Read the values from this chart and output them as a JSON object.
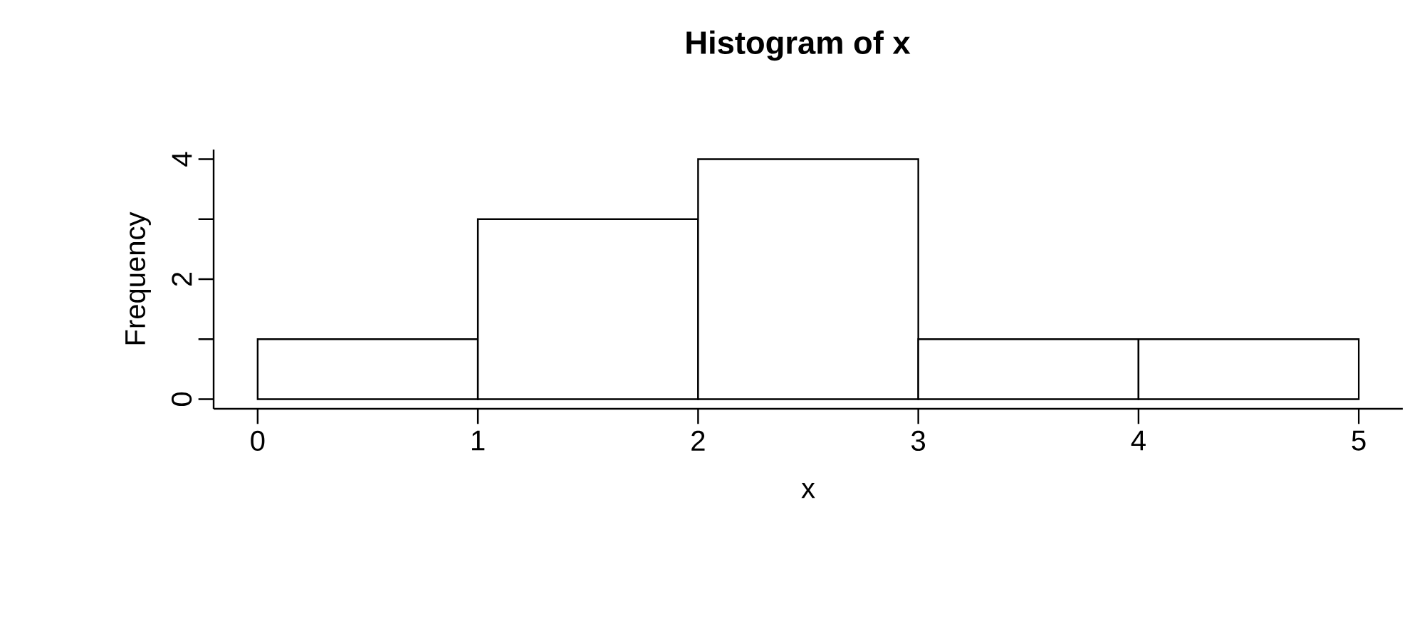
{
  "chart_data": {
    "type": "histogram",
    "title": "Histogram of x",
    "xlabel": "x",
    "ylabel": "Frequency",
    "bins": [
      0,
      1,
      2,
      3,
      4,
      5
    ],
    "values": [
      1,
      3,
      4,
      1,
      1
    ],
    "color": "#ffffff",
    "xlim": [
      -0.2,
      5.2
    ],
    "ylim": [
      -0.16,
      4.16
    ],
    "xticks": [
      0,
      1,
      2,
      3,
      4,
      5
    ],
    "yticks": [
      0,
      {
        "value": 1,
        "label": null
      },
      2,
      {
        "value": 3,
        "label": null
      },
      4
    ]
  }
}
